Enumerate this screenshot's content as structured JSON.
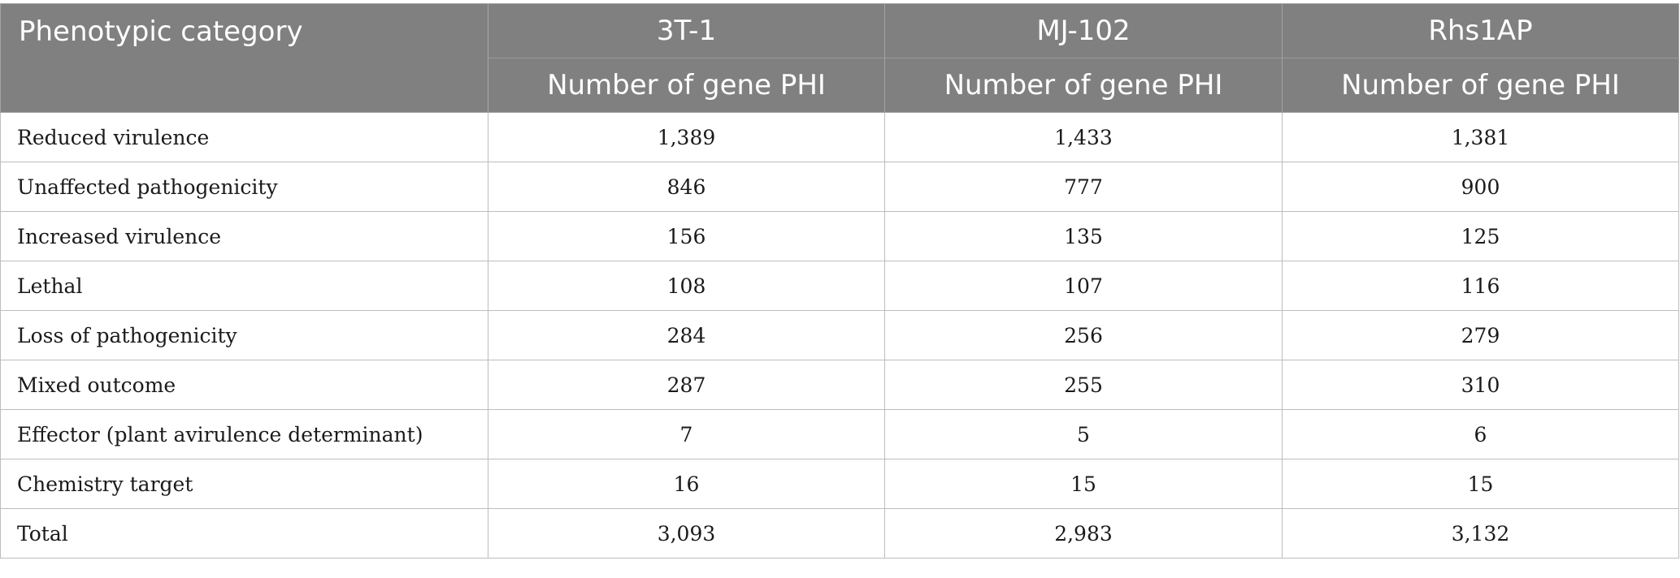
{
  "header": {
    "category_label": "Phenotypic category",
    "strains": [
      "3T-1",
      "MJ-102",
      "Rhs1AP"
    ],
    "sub_label": "Number of gene PHI"
  },
  "rows": [
    {
      "category": "Reduced virulence",
      "values": [
        "1,389",
        "1,433",
        "1,381"
      ]
    },
    {
      "category": "Unaffected pathogenicity",
      "values": [
        "846",
        "777",
        "900"
      ]
    },
    {
      "category": "Increased virulence",
      "values": [
        "156",
        "135",
        "125"
      ]
    },
    {
      "category": "Lethal",
      "values": [
        "108",
        "107",
        "116"
      ]
    },
    {
      "category": "Loss of pathogenicity",
      "values": [
        "284",
        "256",
        "279"
      ]
    },
    {
      "category": "Mixed outcome",
      "values": [
        "287",
        "255",
        "310"
      ]
    },
    {
      "category": "Effector (plant avirulence determinant)",
      "values": [
        "7",
        "5",
        "6"
      ]
    },
    {
      "category": "Chemistry target",
      "values": [
        "16",
        "15",
        "15"
      ]
    },
    {
      "category": "Total",
      "values": [
        "3,093",
        "2,983",
        "3,132"
      ]
    }
  ],
  "colors": {
    "header_background": "#808080",
    "header_text": "#ffffff",
    "border": "#bdbdbd"
  }
}
